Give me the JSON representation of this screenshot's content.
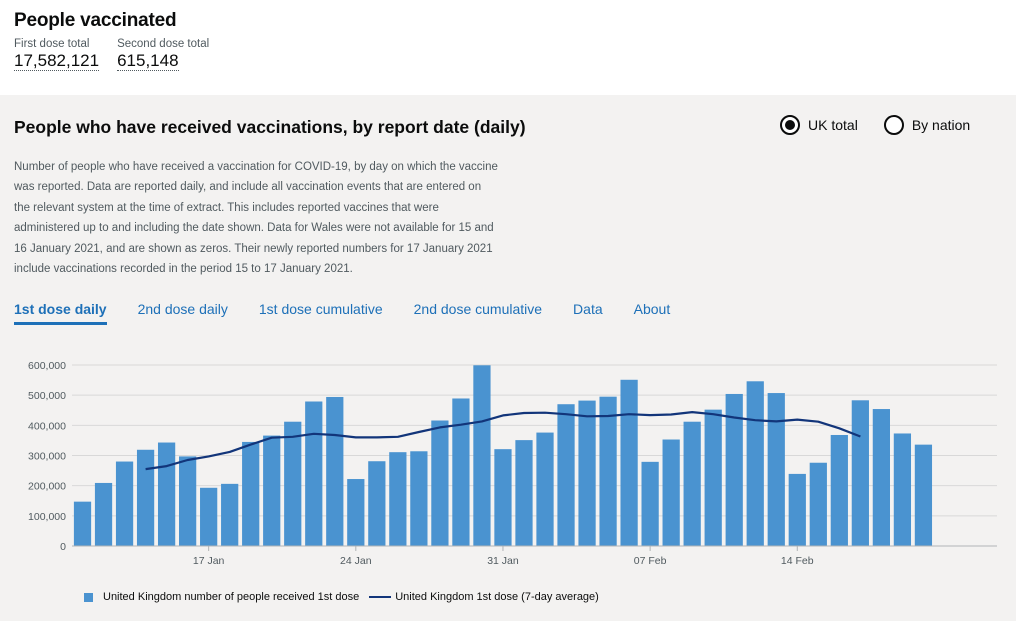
{
  "header": {
    "title": "People vaccinated",
    "first_dose_label": "First dose total",
    "first_dose_value": "17,582,121",
    "second_dose_label": "Second dose total",
    "second_dose_value": "615,148"
  },
  "card": {
    "title": "People who have received vaccinations, by report date (daily)",
    "radios": [
      {
        "label": "UK total",
        "selected": true
      },
      {
        "label": "By nation",
        "selected": false
      }
    ],
    "description_lines": [
      "Number of people who have received a vaccination for COVID-19, by day on which the vaccine",
      "was reported. Data are reported daily, and include all vaccination events that are entered on",
      "the relevant system at the time of extract. This includes reported vaccines that were",
      "administered up to and including the date shown. Data for Wales were not available for 15 and",
      "16 January 2021, and are shown as zeros. Their newly reported numbers for 17 January 2021",
      "include vaccinations recorded in the period 15 to 17 January 2021."
    ],
    "tabs": [
      {
        "label": "1st dose daily",
        "active": true
      },
      {
        "label": "2nd dose daily",
        "active": false
      },
      {
        "label": "1st dose cumulative",
        "active": false
      },
      {
        "label": "2nd dose cumulative",
        "active": false
      },
      {
        "label": "Data",
        "active": false
      },
      {
        "label": "About",
        "active": false
      }
    ]
  },
  "colors": {
    "bar": "#4a93d0",
    "line": "#12357a",
    "tab_link": "#1d70b8"
  },
  "chart_data": {
    "type": "bar",
    "categories": [
      "2021-01-11",
      "2021-01-12",
      "2021-01-13",
      "2021-01-14",
      "2021-01-15",
      "2021-01-16",
      "2021-01-17",
      "2021-01-18",
      "2021-01-19",
      "2021-01-20",
      "2021-01-21",
      "2021-01-22",
      "2021-01-23",
      "2021-01-24",
      "2021-01-25",
      "2021-01-26",
      "2021-01-27",
      "2021-01-28",
      "2021-01-29",
      "2021-01-30",
      "2021-01-31",
      "2021-02-01",
      "2021-02-02",
      "2021-02-03",
      "2021-02-04",
      "2021-02-05",
      "2021-02-06",
      "2021-02-07",
      "2021-02-08",
      "2021-02-09",
      "2021-02-10",
      "2021-02-11",
      "2021-02-12",
      "2021-02-13",
      "2021-02-14",
      "2021-02-15",
      "2021-02-16",
      "2021-02-17",
      "2021-02-18",
      "2021-02-19",
      "2021-02-20",
      "2021-02-21",
      "2021-02-22",
      "2021-02-23"
    ],
    "series": [
      {
        "name": "United Kingdom number of people received 1st dose",
        "type": "bar",
        "values": [
          147000,
          209000,
          280000,
          319000,
          343000,
          297000,
          193000,
          206000,
          345000,
          366000,
          412000,
          479000,
          494000,
          222000,
          281000,
          311000,
          314000,
          416000,
          489000,
          599000,
          321000,
          351000,
          376000,
          470000,
          482000,
          495000,
          551000,
          279000,
          353000,
          412000,
          452000,
          504000,
          546000,
          507000,
          239000,
          276000,
          368000,
          483000,
          454000,
          373000,
          336000,
          null,
          null,
          null
        ]
      },
      {
        "name": "United Kingdom 1st dose (7-day average)",
        "type": "line",
        "values": [
          null,
          null,
          null,
          255000,
          265000,
          285000,
          297000,
          312000,
          336000,
          359000,
          362000,
          372000,
          368000,
          360000,
          360000,
          362000,
          378000,
          393000,
          402000,
          413000,
          433000,
          441000,
          442000,
          437000,
          430000,
          431000,
          437000,
          434000,
          436000,
          444000,
          437000,
          426000,
          417000,
          413000,
          419000,
          412000,
          390000,
          363000,
          null,
          null,
          null,
          null,
          null,
          null
        ]
      }
    ],
    "x_tick_labels": [
      {
        "label": "17 Jan",
        "category": "2021-01-17"
      },
      {
        "label": "24 Jan",
        "category": "2021-01-24"
      },
      {
        "label": "31 Jan",
        "category": "2021-01-31"
      },
      {
        "label": "07 Feb",
        "category": "2021-02-07"
      },
      {
        "label": "14 Feb",
        "category": "2021-02-14"
      }
    ],
    "y_ticks": [
      0,
      100000,
      200000,
      300000,
      400000,
      500000,
      600000
    ],
    "y_tick_labels": [
      "0",
      "100,000",
      "200,000",
      "300,000",
      "400,000",
      "500,000",
      "600,000"
    ],
    "ylim": [
      0,
      600000
    ],
    "grid": "horizontal",
    "legend_position": "bottom-left"
  }
}
